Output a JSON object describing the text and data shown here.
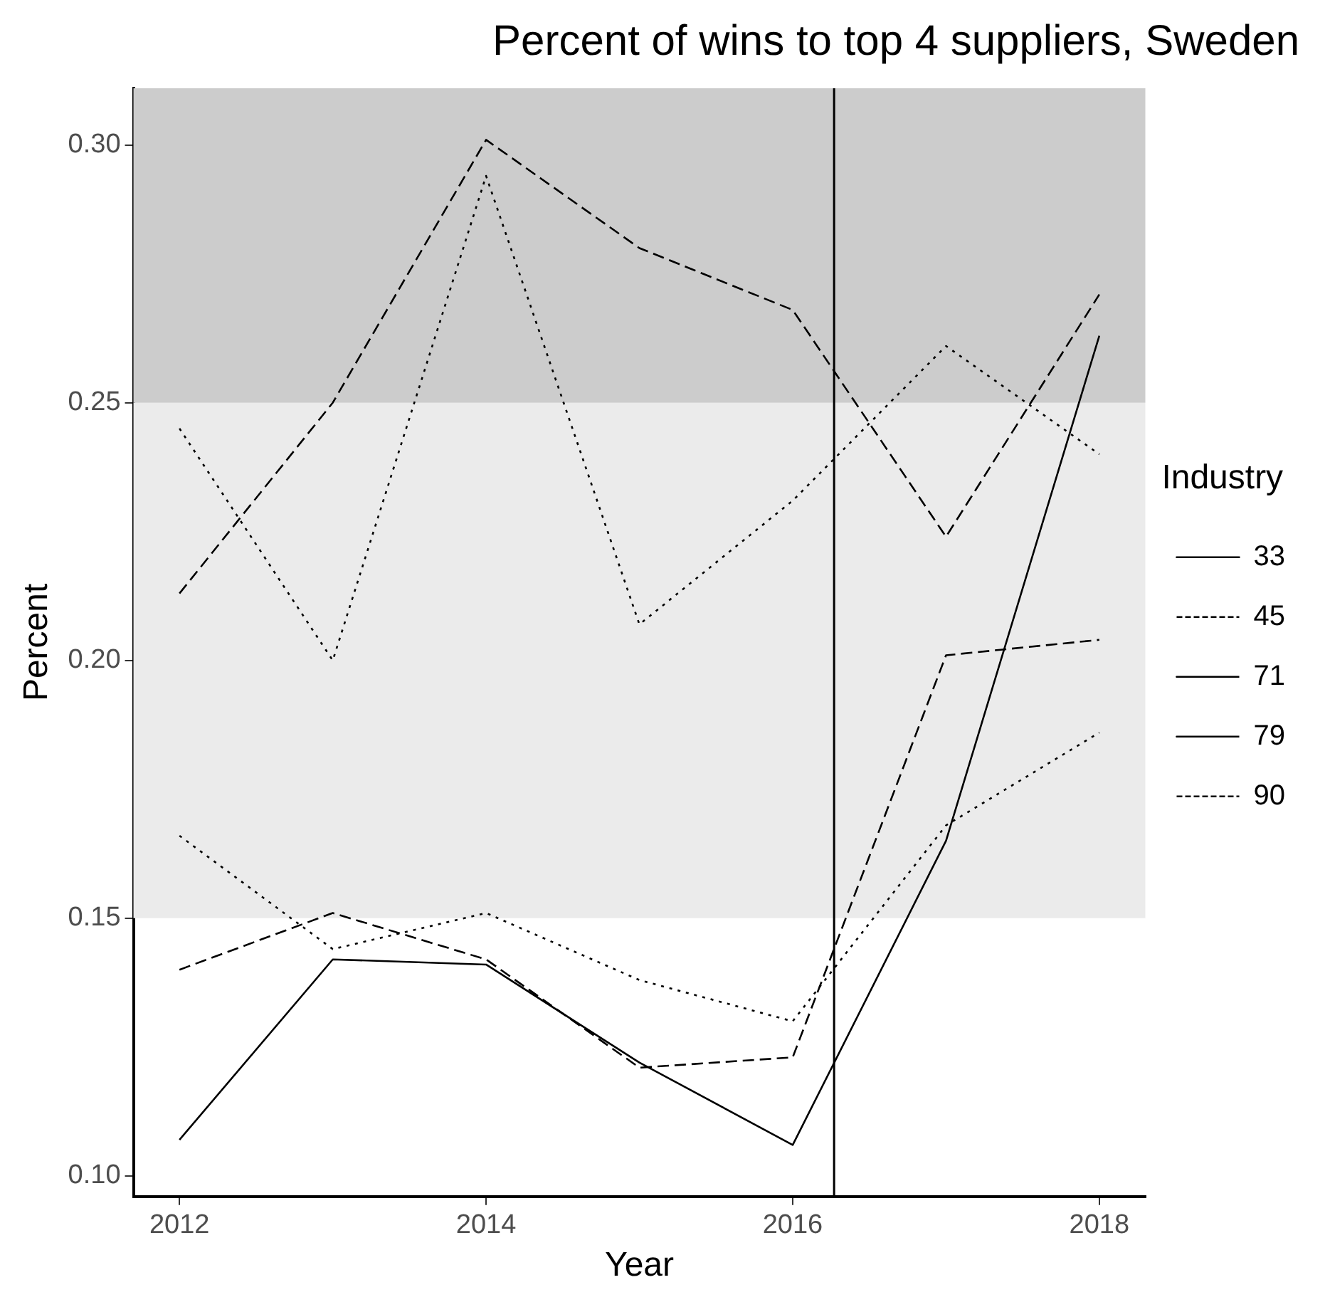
{
  "chart_data": {
    "type": "line",
    "title": "Percent of wins to top 4 suppliers, Sweden",
    "xlabel": "Year",
    "ylabel": "Percent",
    "legend_title": "Industry",
    "legend": "right",
    "grid": false,
    "marker": "none",
    "x": [
      2012,
      2013,
      2014,
      2015,
      2016,
      2017,
      2018
    ],
    "xlim": [
      2011.7,
      2018.3
    ],
    "xticks": [
      2012,
      2014,
      2016,
      2018
    ],
    "ylim": [
      0.096,
      0.311
    ],
    "yticks": [
      {
        "value": 0.1,
        "label": "0.10"
      },
      {
        "value": 0.15,
        "label": "0.15"
      },
      {
        "value": 0.2,
        "label": "0.20"
      },
      {
        "value": 0.25,
        "label": "0.25"
      },
      {
        "value": 0.3,
        "label": "0.30"
      }
    ],
    "series": [
      {
        "name": "33",
        "color": "#000000",
        "line_style": "solid",
        "values": [
          0.107,
          0.142,
          0.141,
          0.122,
          0.106,
          0.165,
          0.263
        ]
      },
      {
        "name": "45",
        "color": "#000000",
        "line_style": "dotted",
        "values": [
          0.166,
          0.144,
          0.151,
          0.138,
          0.13,
          0.168,
          0.186
        ]
      },
      {
        "name": "71",
        "color": "#000000",
        "line_style": "dashed",
        "values": [
          0.213,
          0.25,
          0.301,
          0.28,
          0.268,
          0.224,
          0.271
        ]
      },
      {
        "name": "79",
        "color": "#000000",
        "line_style": "dashed",
        "values": [
          0.14,
          0.151,
          0.142,
          0.121,
          0.123,
          0.201,
          0.204
        ]
      },
      {
        "name": "90",
        "color": "#000000",
        "line_style": "dotted",
        "values": [
          0.245,
          0.2,
          0.294,
          0.207,
          0.231,
          0.261,
          0.24
        ]
      }
    ],
    "bands": [
      {
        "axis": "y",
        "from": 0.15,
        "to": 0.25,
        "color": "#ebebeb"
      },
      {
        "axis": "y",
        "from": 0.25,
        "to": 0.311,
        "color": "#cccccc"
      }
    ],
    "ref_lines": [
      {
        "axis": "x",
        "value": 2016.27,
        "color": "#000000",
        "line_style": "solid"
      }
    ]
  }
}
